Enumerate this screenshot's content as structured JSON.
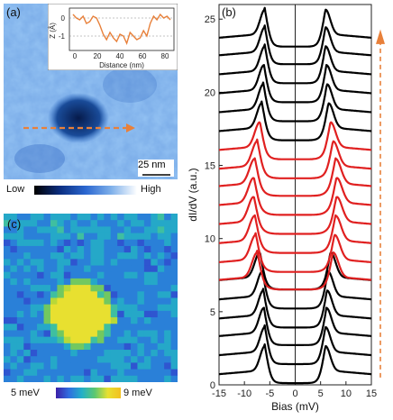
{
  "panels": {
    "a": {
      "label": "(a)",
      "scale_bar": "25 nm",
      "inset": {
        "ylabel": "Z (Å)",
        "xlabel": "Distance (nm)",
        "xticks": [
          "0",
          "20",
          "40",
          "60",
          "80"
        ],
        "yticks": [
          "0",
          "-1"
        ],
        "profile_depth_angstrom": [
          0.2,
          0.0,
          -0.1,
          0.1,
          -0.3,
          -0.2,
          0.1,
          0.0,
          -0.4,
          -0.9,
          -1.2,
          -0.8,
          -1.1,
          -1.3,
          -0.9,
          -1.0,
          -1.4,
          -0.8,
          -1.0,
          -1.2,
          -1.1,
          -0.7,
          -1.0,
          -0.3,
          0.1,
          -0.1,
          0.2,
          0.0,
          0.1,
          -0.1
        ]
      },
      "colorbar": {
        "low": "Low",
        "high": "High"
      },
      "colors": {
        "arrow": "#e8803a"
      }
    },
    "c": {
      "label": "(c)",
      "colorbar": {
        "min": "5 meV",
        "max": "9 meV"
      }
    },
    "b": {
      "label": "(b)"
    }
  },
  "chart_data": {
    "type": "line",
    "title": "",
    "xlabel": "Bias (mV)",
    "ylabel": "dI/dV (a.u.)",
    "xlim": [
      -15,
      15
    ],
    "ylim": [
      0,
      26
    ],
    "xticks": [
      -15,
      -10,
      -5,
      0,
      5,
      10,
      15
    ],
    "yticks": [
      0,
      5,
      10,
      15,
      20,
      25
    ],
    "series": [
      {
        "offset": 0.0,
        "peak": 6.0,
        "color": "#000000"
      },
      {
        "offset": 1.3,
        "peak": 6.0,
        "color": "#000000"
      },
      {
        "offset": 2.6,
        "peak": 6.2,
        "color": "#000000"
      },
      {
        "offset": 3.8,
        "peak": 6.3,
        "color": "#000000"
      },
      {
        "offset": 5.1,
        "peak": 6.5,
        "color": "#000000"
      },
      {
        "offset": 6.4,
        "peak": 7.0,
        "color": "#000000"
      },
      {
        "offset": 6.4,
        "peak": 7.5,
        "color": "#e02020"
      },
      {
        "offset": 7.6,
        "peak": 7.8,
        "color": "#e02020"
      },
      {
        "offset": 8.9,
        "peak": 8.0,
        "color": "#e02020"
      },
      {
        "offset": 10.2,
        "peak": 8.2,
        "color": "#e02020"
      },
      {
        "offset": 11.5,
        "peak": 8.2,
        "color": "#e02020"
      },
      {
        "offset": 12.8,
        "peak": 8.0,
        "color": "#e02020"
      },
      {
        "offset": 14.0,
        "peak": 7.5,
        "color": "#e02020"
      },
      {
        "offset": 15.3,
        "peak": 7.0,
        "color": "#e02020"
      },
      {
        "offset": 16.6,
        "peak": 6.6,
        "color": "#000000"
      },
      {
        "offset": 17.9,
        "peak": 6.3,
        "color": "#000000"
      },
      {
        "offset": 19.2,
        "peak": 6.2,
        "color": "#000000"
      },
      {
        "offset": 20.5,
        "peak": 6.0,
        "color": "#000000"
      },
      {
        "offset": 21.8,
        "peak": 6.0,
        "color": "#000000"
      },
      {
        "offset": 23.0,
        "peak": 6.0,
        "color": "#000000"
      }
    ],
    "colors": {
      "arrow": "#e8803a"
    }
  }
}
